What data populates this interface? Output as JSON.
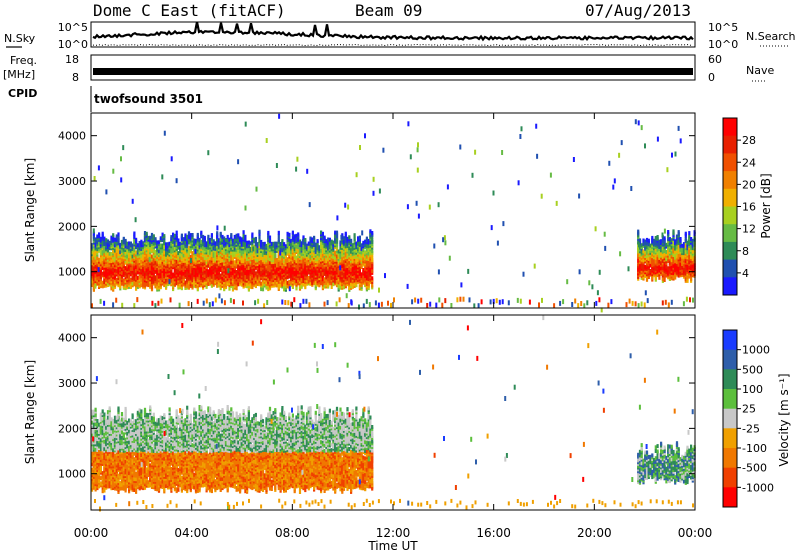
{
  "header": {
    "station": "Dome C East (fitACF)",
    "beam": "Beam 09",
    "date": "07/Aug/2013"
  },
  "strip_panels": {
    "nsky": {
      "label": "N.Sky",
      "tick_top": "10^5",
      "tick_bottom": "10^0",
      "right_tick_top": "10^5",
      "right_tick_bottom": "10^0",
      "right_label": "N.Search",
      "series_color": "#000000"
    },
    "freq": {
      "label": "Freq.",
      "unit": "[MHz]",
      "tick_top": "18",
      "tick_bottom": "8",
      "right_tick_top": "60",
      "right_tick_bottom": "0",
      "right_label": "Nave"
    },
    "cpid": {
      "label": "CPID",
      "value": "twofsound 3501"
    }
  },
  "chart_data": [
    {
      "type": "heatmap",
      "panel": "power",
      "ylabel": "Slant Range [km]",
      "yticks": [
        1000,
        2000,
        3000,
        4000
      ],
      "ylim": [
        200,
        4500
      ],
      "xlim_hours": [
        0,
        24
      ],
      "colorbar": {
        "label": "Power [dB]",
        "ticks": [
          "4",
          "8",
          "12",
          "16",
          "20",
          "24",
          "28"
        ],
        "colors": [
          "#1a1aff",
          "#2050b0",
          "#2e8b57",
          "#66bb44",
          "#a8d020",
          "#f0b000",
          "#f08000",
          "#f05000",
          "#e82000",
          "#ff0000"
        ]
      },
      "regions": [
        {
          "t0": 0.0,
          "t1": 11.2,
          "r0": 600,
          "r1": 1900,
          "peak_range": 1000
        },
        {
          "t0": 21.7,
          "t1": 24.0,
          "r0": 800,
          "r1": 1900,
          "peak_range": 1100
        }
      ]
    },
    {
      "type": "heatmap",
      "panel": "velocity",
      "ylabel": "Slant Range [km]",
      "yticks": [
        1000,
        2000,
        3000,
        4000
      ],
      "ylim": [
        200,
        4500
      ],
      "xlim_hours": [
        0,
        24
      ],
      "xticks": [
        "00:00",
        "04:00",
        "08:00",
        "12:00",
        "16:00",
        "20:00",
        "00:00"
      ],
      "xlabel": "Time UT",
      "colorbar": {
        "label": "Velocity [m s⁻¹]",
        "ticks": [
          "1000",
          "500",
          "100",
          "25",
          "-25",
          "-100",
          "-500",
          "-1000"
        ],
        "colors": [
          "#1a3cff",
          "#2e5eaa",
          "#2e8b57",
          "#5cbf3c",
          "#c8c8c8",
          "#f0a000",
          "#f07800",
          "#f04000",
          "#ff0000"
        ]
      },
      "regions": [
        {
          "t0": 0.0,
          "t1": 11.2,
          "r0": 600,
          "r1": 2500,
          "dominant": "orange"
        },
        {
          "t0": 21.7,
          "t1": 24.0,
          "r0": 800,
          "r1": 1700,
          "dominant": "green"
        }
      ]
    }
  ]
}
